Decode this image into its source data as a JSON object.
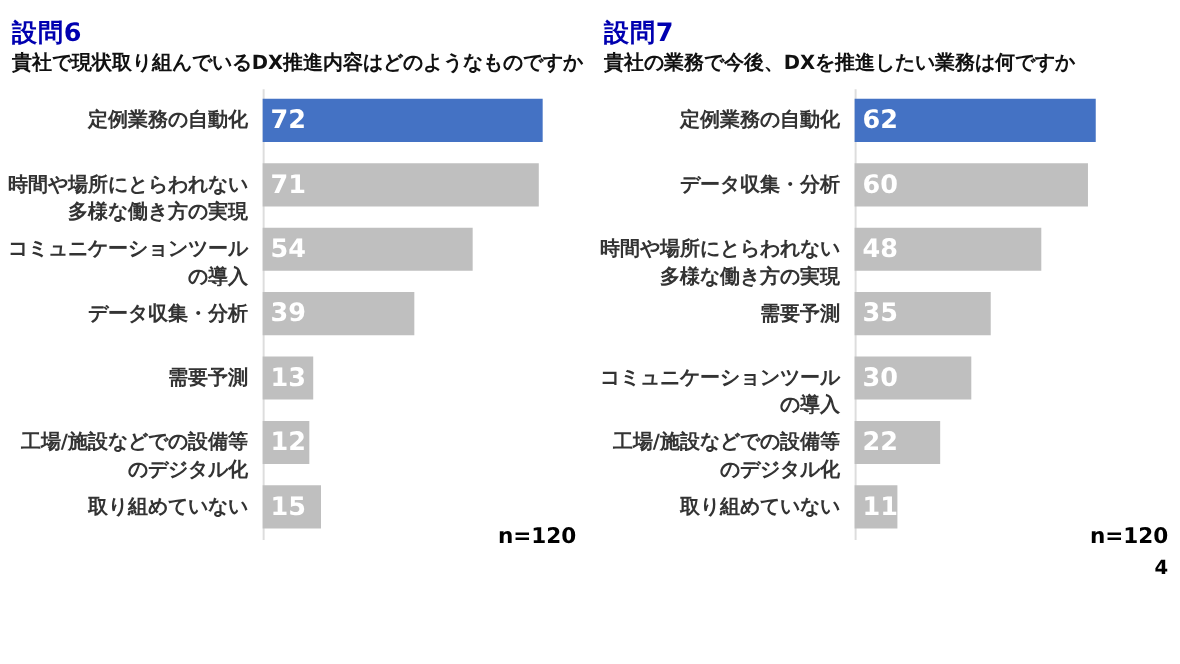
{
  "chart_data": [
    {
      "type": "bar",
      "orientation": "horizontal",
      "title": "設問6",
      "subtitle": "貴社で現状取り組んでいるDX推進内容はどのようなものですか",
      "categories": [
        "定例業務の自動化",
        "時間や場所にとらわれない多様な働き方の実現",
        "コミュニケーションツールの導入",
        "データ収集・分析",
        "需要予測",
        "工場/施設などでの設備等のデジタル化",
        "取り組めていない"
      ],
      "values": [
        72,
        71,
        54,
        39,
        13,
        12,
        15
      ],
      "colors": [
        "#4472c4",
        "#bfbfbf",
        "#bfbfbf",
        "#bfbfbf",
        "#bfbfbf",
        "#bfbfbf",
        "#bfbfbf"
      ],
      "data_labels": true,
      "annotations": [
        "n=120"
      ]
    },
    {
      "type": "bar",
      "orientation": "horizontal",
      "title": "設問7",
      "subtitle": "貴社の業務で今後、DXを推進したい業務は何ですか",
      "categories": [
        "定例業務の自動化",
        "データ収集・分析",
        "時間や場所にとらわれない多様な働き方の実現",
        "需要予測",
        "コミュニケーションツールの導入",
        "工場/施設などでの設備等のデジタル化",
        "取り組めていない"
      ],
      "values": [
        62,
        60,
        48,
        35,
        30,
        22,
        11
      ],
      "colors": [
        "#4472c4",
        "#bfbfbf",
        "#bfbfbf",
        "#bfbfbf",
        "#bfbfbf",
        "#bfbfbf",
        "#bfbfbf"
      ],
      "data_labels": true,
      "annotations": [
        "n=120",
        "4"
      ]
    }
  ]
}
